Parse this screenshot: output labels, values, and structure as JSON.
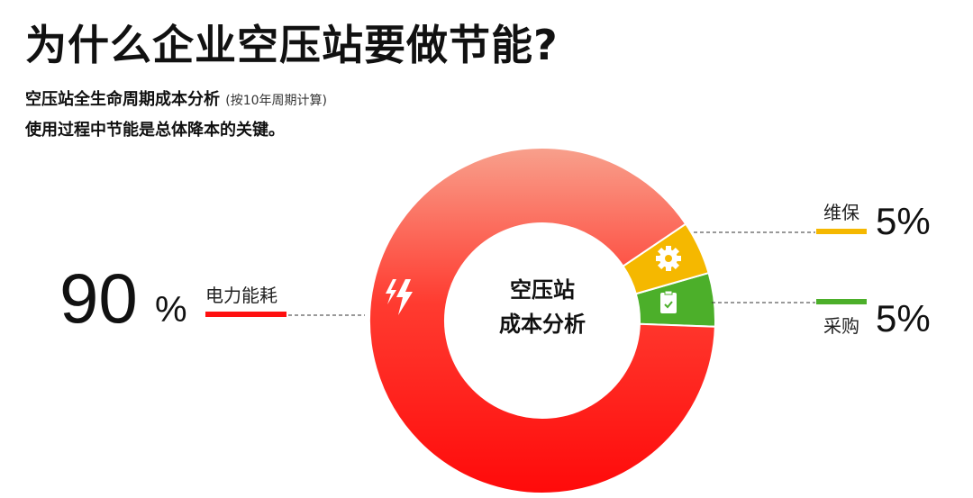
{
  "title": "为什么企业空压站要做节能?",
  "subtitle": "空压站全生命周期成本分析",
  "subtitle_note": "(按10年周期计算)",
  "subtitle2": "使用过程中节能是总体降本的关键。",
  "chart_data": {
    "type": "pie",
    "donut": true,
    "center_label": [
      "空压站",
      "成本分析"
    ],
    "slices": [
      {
        "label": "电力能耗",
        "value": 90,
        "display": "90",
        "unit": "%",
        "color": "#ff2020",
        "icon": "lightning-icon"
      },
      {
        "label": "维保",
        "value": 5,
        "display": "5%",
        "color": "#f5b800",
        "icon": "gear-icon"
      },
      {
        "label": "采购",
        "value": 5,
        "display": "5%",
        "color": "#4caf2a",
        "icon": "clipboard-check-icon"
      }
    ]
  }
}
